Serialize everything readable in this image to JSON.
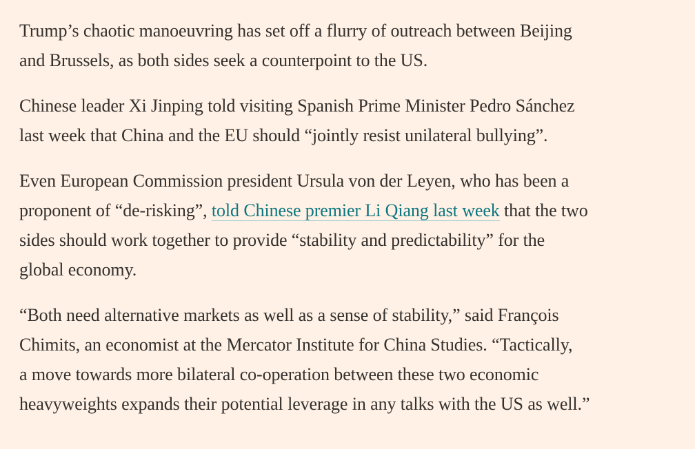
{
  "article": {
    "p1": {
      "line1": "Trump’s chaotic manoeuvring has set off a flurry of outreach between Beijing",
      "line2": "and Brussels, as both sides seek a counterpoint to the US."
    },
    "p2": {
      "line1": "Chinese leader Xi Jinping told visiting Spanish Prime Minister Pedro Sánchez",
      "line2": "last week that China and the EU should “jointly resist unilateral bullying”."
    },
    "p3": {
      "line1": "Even European Commission president Ursula von der Leyen, who has been a",
      "line2_before": "proponent of “de-risking”, ",
      "link_text": "told Chinese premier Li Qiang last week",
      "line2_after": " that the two",
      "line3": "sides should work together to provide “stability and predictability” for the",
      "line4": "global economy."
    },
    "p4": {
      "line1": "“Both need alternative markets as well as a sense of stability,” said François",
      "line2": "Chimits, an economist at the Mercator Institute for China Studies. “Tactically,",
      "line3": "a move towards more bilateral co-operation between these two economic",
      "line4": "heavyweights expands their potential leverage in any talks with the US as well.”"
    }
  },
  "colors": {
    "background": "#FFF1E5",
    "text": "#33302E",
    "link": "#0D7680"
  }
}
